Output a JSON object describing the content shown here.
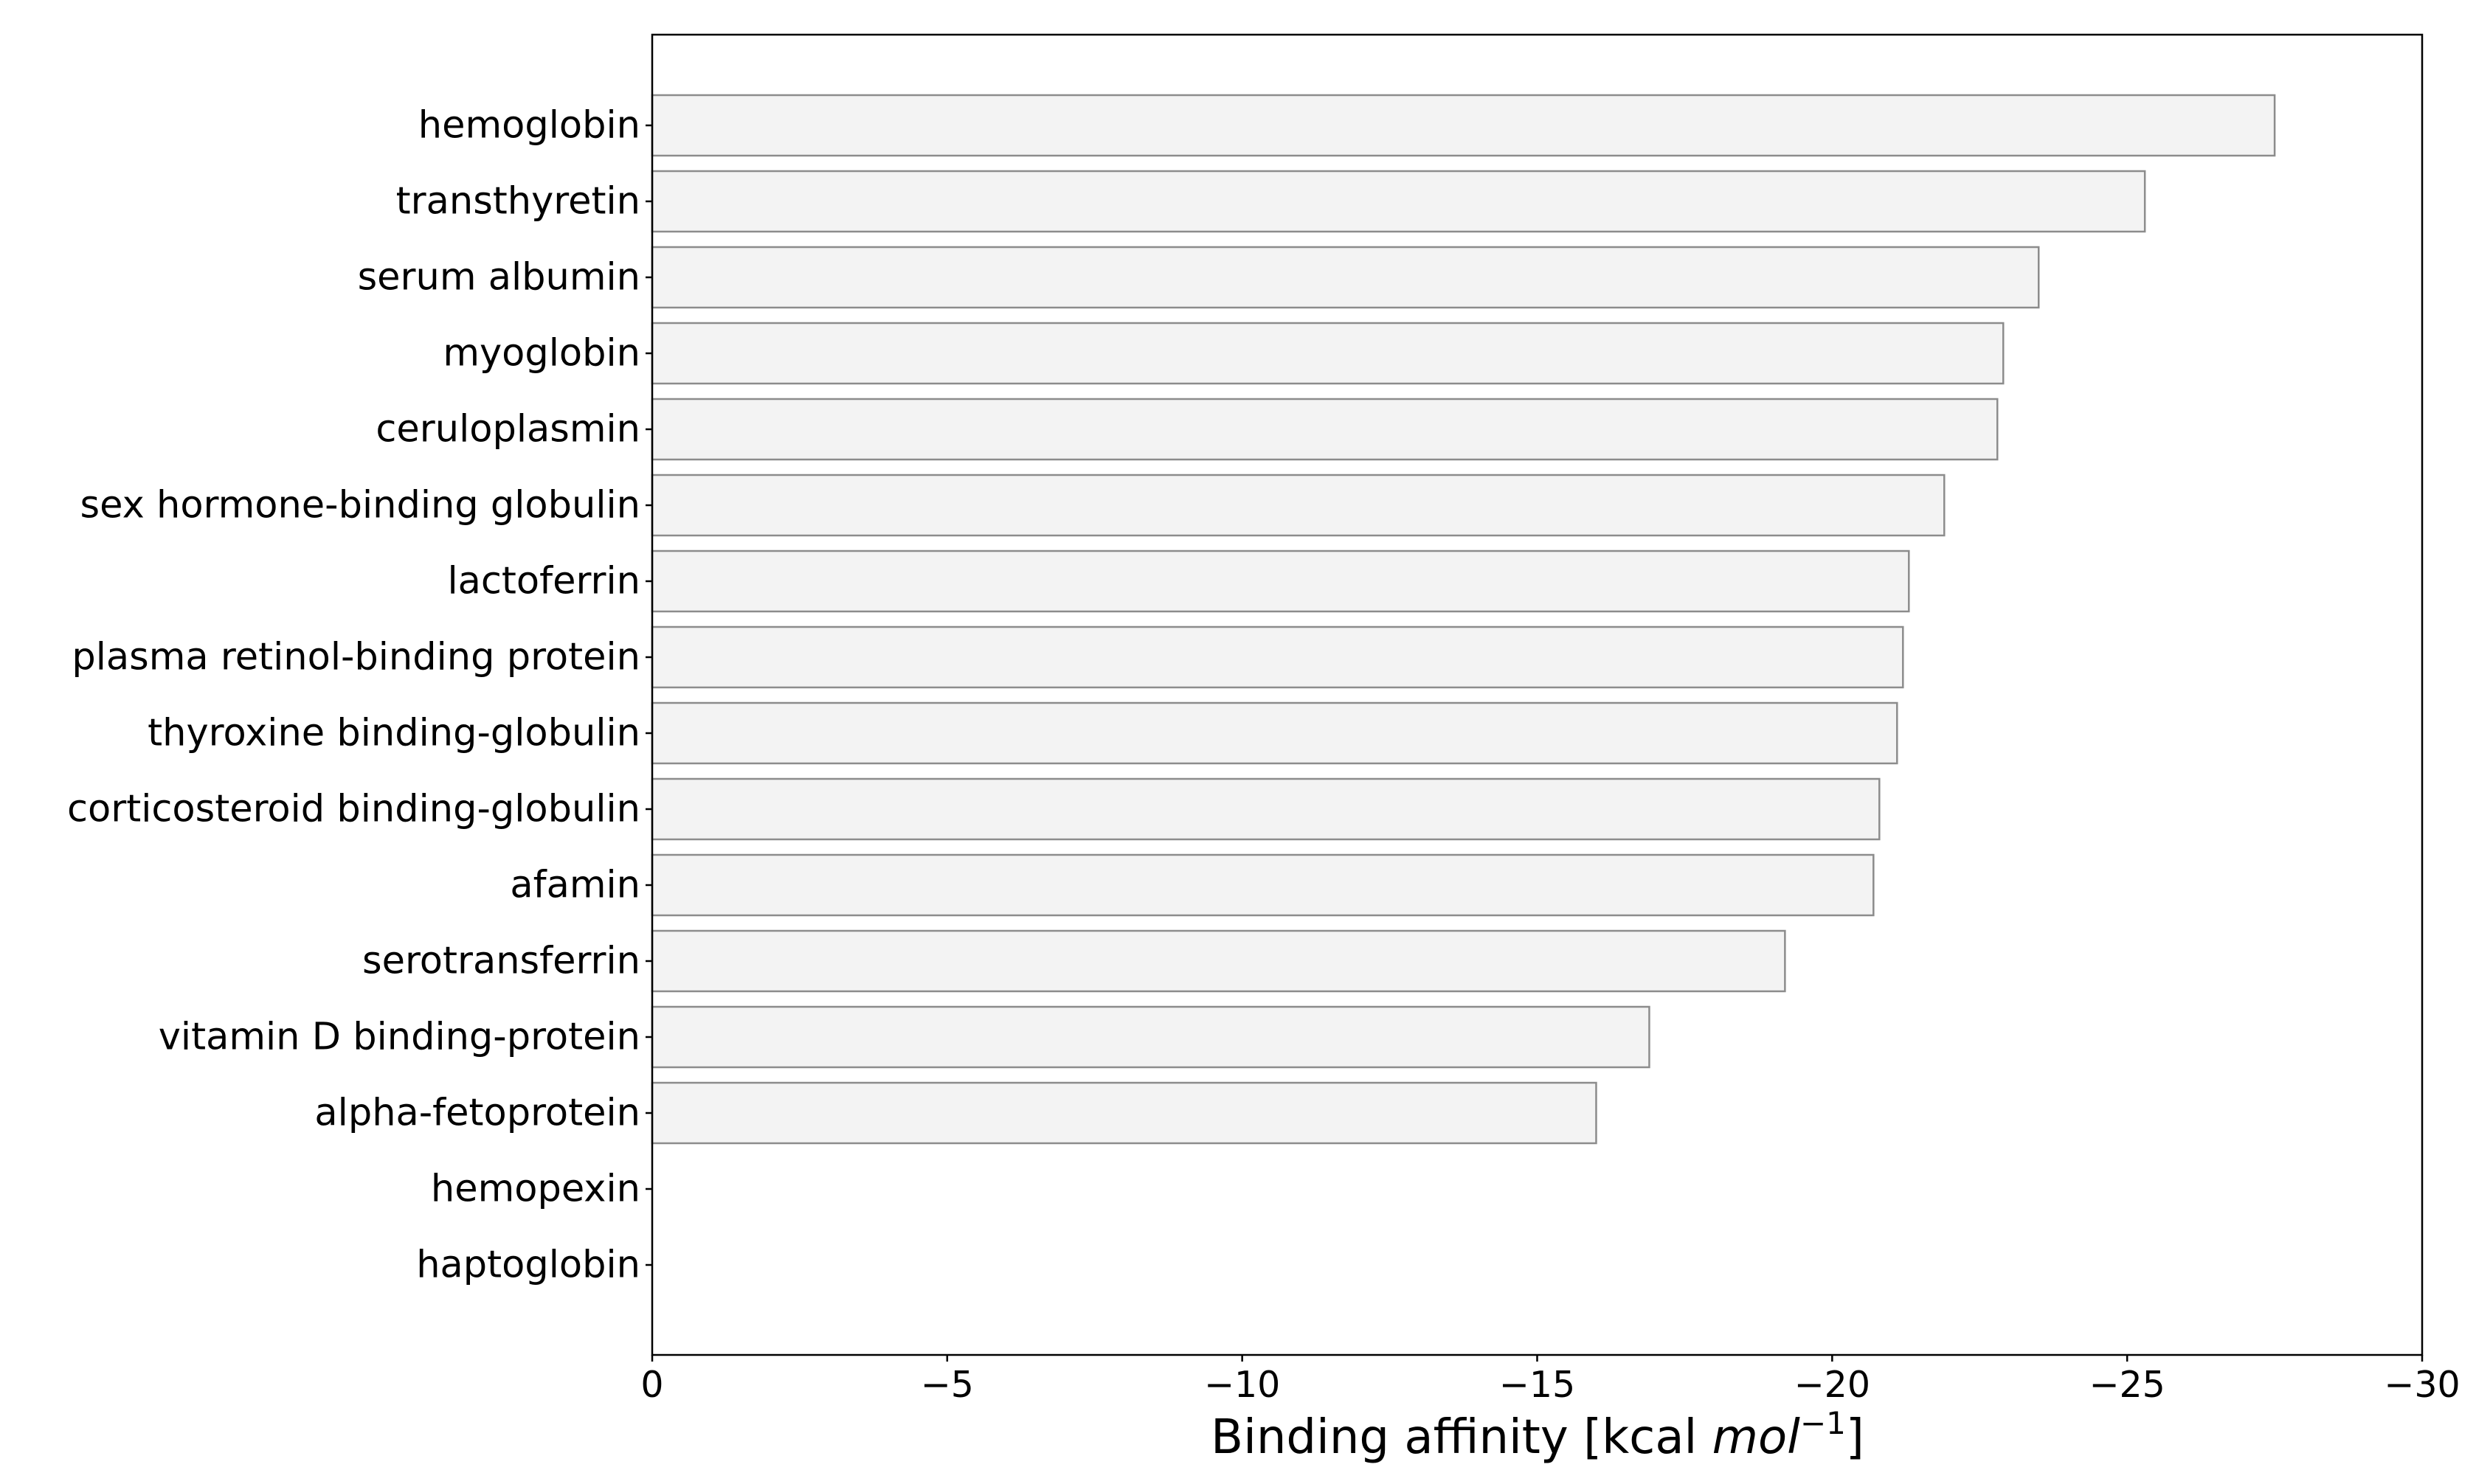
{
  "chart_data": {
    "type": "bar",
    "orientation": "horizontal",
    "categories": [
      "hemoglobin",
      "transthyretin",
      "serum albumin",
      "myoglobin",
      "ceruloplasmin",
      "sex hormone-binding globulin",
      "lactoferrin",
      "plasma retinol-binding protein",
      "thyroxine binding-globulin",
      "corticosteroid binding-globulin",
      "afamin",
      "serotransferrin",
      "vitamin D binding-protein",
      "alpha-fetoprotein",
      "hemopexin",
      "haptoglobin"
    ],
    "values": [
      -27.5,
      -25.3,
      -23.5,
      -22.9,
      -22.8,
      -21.9,
      -21.3,
      -21.2,
      -21.1,
      -20.8,
      -20.7,
      -19.2,
      -16.9,
      -16.0,
      null,
      null
    ],
    "xlabel": "Binding affinity [kcal mol⁻¹]",
    "xlabel_parts": {
      "main": "Binding affinity [kcal ",
      "unit": "mol",
      "exp": "−1",
      "close": "]"
    },
    "xlim": [
      0,
      -30
    ],
    "xticks": [
      0,
      -5,
      -10,
      -15,
      -20,
      -25,
      -30
    ],
    "xtick_labels": [
      "0",
      "−5",
      "−10",
      "−15",
      "−20",
      "−25",
      "−30"
    ],
    "grid": false,
    "bar_color": "#f3f3f3",
    "bar_edge_color": "#8c8c8c"
  }
}
